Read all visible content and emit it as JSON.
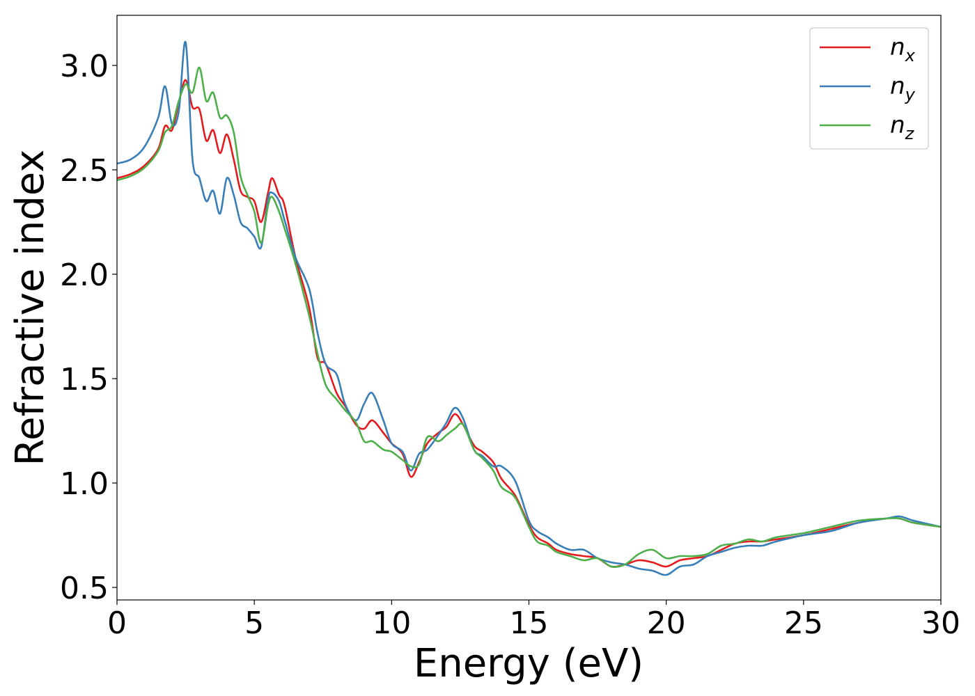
{
  "chart_data": {
    "type": "line",
    "title": "",
    "xlabel": "Energy (eV)",
    "ylabel": "Refractive index",
    "xlim": [
      0,
      30
    ],
    "ylim": [
      0.44,
      3.24
    ],
    "xticks": [
      0,
      5,
      10,
      15,
      20,
      25,
      30
    ],
    "yticks": [
      0.5,
      1.0,
      1.5,
      2.0,
      2.5,
      3.0
    ],
    "xtick_labels": [
      "0",
      "5",
      "10",
      "15",
      "20",
      "25",
      "30"
    ],
    "ytick_labels": [
      "0.5",
      "1.0",
      "1.5",
      "2.0",
      "2.5",
      "3.0"
    ],
    "grid": false,
    "legend_position": "top-right",
    "series": [
      {
        "name": "n_x",
        "label_base": "n",
        "label_sub": "x",
        "color": "#e41a1c",
        "x": [
          0,
          0.5,
          1.0,
          1.5,
          1.75,
          2.0,
          2.25,
          2.5,
          2.75,
          3.0,
          3.25,
          3.5,
          3.75,
          4.0,
          4.25,
          4.5,
          4.75,
          5.0,
          5.25,
          5.5,
          5.65,
          5.9,
          6.1,
          6.5,
          7.0,
          7.3,
          7.6,
          8.0,
          8.3,
          8.7,
          9.0,
          9.3,
          9.7,
          10.0,
          10.4,
          10.7,
          11.0,
          11.3,
          11.7,
          12.0,
          12.3,
          12.6,
          13.0,
          13.3,
          13.7,
          14.0,
          14.5,
          15.0,
          15.3,
          15.7,
          16.0,
          16.5,
          17.0,
          17.5,
          18.0,
          18.5,
          19.0,
          19.5,
          20.0,
          20.5,
          21.0,
          21.5,
          22.0,
          22.5,
          23.0,
          23.5,
          24.0,
          25.0,
          26.0,
          27.0,
          28.0,
          28.5,
          29.0,
          30.0
        ],
        "y": [
          2.46,
          2.48,
          2.52,
          2.6,
          2.71,
          2.69,
          2.82,
          2.93,
          2.8,
          2.79,
          2.64,
          2.69,
          2.58,
          2.67,
          2.55,
          2.4,
          2.37,
          2.35,
          2.25,
          2.39,
          2.46,
          2.38,
          2.33,
          2.08,
          1.84,
          1.6,
          1.57,
          1.43,
          1.37,
          1.28,
          1.26,
          1.3,
          1.24,
          1.19,
          1.14,
          1.03,
          1.1,
          1.19,
          1.24,
          1.27,
          1.33,
          1.28,
          1.18,
          1.15,
          1.1,
          1.02,
          0.94,
          0.8,
          0.74,
          0.71,
          0.68,
          0.66,
          0.65,
          0.64,
          0.6,
          0.61,
          0.63,
          0.62,
          0.6,
          0.63,
          0.64,
          0.65,
          0.68,
          0.71,
          0.72,
          0.72,
          0.73,
          0.75,
          0.78,
          0.81,
          0.83,
          0.83,
          0.81,
          0.79
        ]
      },
      {
        "name": "n_y",
        "label_base": "n",
        "label_sub": "y",
        "color": "#377eb8",
        "x": [
          0,
          0.5,
          1.0,
          1.5,
          1.75,
          2.0,
          2.25,
          2.5,
          2.75,
          3.0,
          3.25,
          3.5,
          3.75,
          4.0,
          4.25,
          4.5,
          4.75,
          5.0,
          5.25,
          5.5,
          5.65,
          5.9,
          6.1,
          6.5,
          7.0,
          7.3,
          7.6,
          8.0,
          8.3,
          8.7,
          9.0,
          9.3,
          9.7,
          10.0,
          10.4,
          10.7,
          11.0,
          11.3,
          11.7,
          12.0,
          12.3,
          12.6,
          13.0,
          13.3,
          13.7,
          14.0,
          14.5,
          15.0,
          15.3,
          15.7,
          16.0,
          16.5,
          17.0,
          17.5,
          18.0,
          18.5,
          19.0,
          19.5,
          20.0,
          20.5,
          21.0,
          21.5,
          22.0,
          22.5,
          23.0,
          23.5,
          24.0,
          25.0,
          26.0,
          27.0,
          28.0,
          28.5,
          29.0,
          30.0
        ],
        "y": [
          2.53,
          2.55,
          2.61,
          2.75,
          2.9,
          2.72,
          2.78,
          3.11,
          2.55,
          2.46,
          2.35,
          2.4,
          2.29,
          2.46,
          2.38,
          2.25,
          2.22,
          2.18,
          2.13,
          2.36,
          2.39,
          2.35,
          2.26,
          2.08,
          1.93,
          1.72,
          1.57,
          1.52,
          1.38,
          1.3,
          1.38,
          1.43,
          1.3,
          1.19,
          1.15,
          1.06,
          1.14,
          1.16,
          1.23,
          1.29,
          1.36,
          1.31,
          1.16,
          1.13,
          1.08,
          1.08,
          1.01,
          0.82,
          0.77,
          0.74,
          0.71,
          0.68,
          0.68,
          0.64,
          0.62,
          0.61,
          0.59,
          0.58,
          0.56,
          0.6,
          0.61,
          0.65,
          0.67,
          0.69,
          0.7,
          0.7,
          0.72,
          0.75,
          0.77,
          0.81,
          0.83,
          0.84,
          0.82,
          0.79
        ]
      },
      {
        "name": "n_z",
        "label_base": "n",
        "label_sub": "z",
        "color": "#4daf4a",
        "x": [
          0,
          0.5,
          1.0,
          1.5,
          1.75,
          2.0,
          2.25,
          2.5,
          2.75,
          3.0,
          3.25,
          3.5,
          3.75,
          4.0,
          4.25,
          4.5,
          4.75,
          5.0,
          5.25,
          5.5,
          5.65,
          5.9,
          6.1,
          6.5,
          7.0,
          7.3,
          7.6,
          8.0,
          8.3,
          8.7,
          9.0,
          9.3,
          9.7,
          10.0,
          10.4,
          10.7,
          11.0,
          11.3,
          11.7,
          12.0,
          12.3,
          12.6,
          13.0,
          13.3,
          13.7,
          14.0,
          14.5,
          15.0,
          15.3,
          15.7,
          16.0,
          16.5,
          17.0,
          17.5,
          18.0,
          18.5,
          19.0,
          19.5,
          20.0,
          20.5,
          21.0,
          21.5,
          22.0,
          22.5,
          23.0,
          23.5,
          24.0,
          25.0,
          26.0,
          27.0,
          28.0,
          28.5,
          29.0,
          30.0
        ],
        "y": [
          2.45,
          2.47,
          2.51,
          2.59,
          2.68,
          2.71,
          2.83,
          2.91,
          2.87,
          2.99,
          2.83,
          2.87,
          2.75,
          2.76,
          2.68,
          2.47,
          2.38,
          2.3,
          2.15,
          2.33,
          2.37,
          2.3,
          2.22,
          2.05,
          1.8,
          1.62,
          1.47,
          1.4,
          1.35,
          1.29,
          1.2,
          1.2,
          1.16,
          1.15,
          1.11,
          1.08,
          1.09,
          1.22,
          1.2,
          1.23,
          1.26,
          1.28,
          1.16,
          1.12,
          1.06,
          0.98,
          0.93,
          0.79,
          0.72,
          0.7,
          0.67,
          0.65,
          0.63,
          0.64,
          0.6,
          0.61,
          0.66,
          0.68,
          0.64,
          0.65,
          0.65,
          0.66,
          0.7,
          0.71,
          0.73,
          0.72,
          0.74,
          0.76,
          0.79,
          0.82,
          0.83,
          0.83,
          0.81,
          0.79
        ]
      }
    ]
  }
}
